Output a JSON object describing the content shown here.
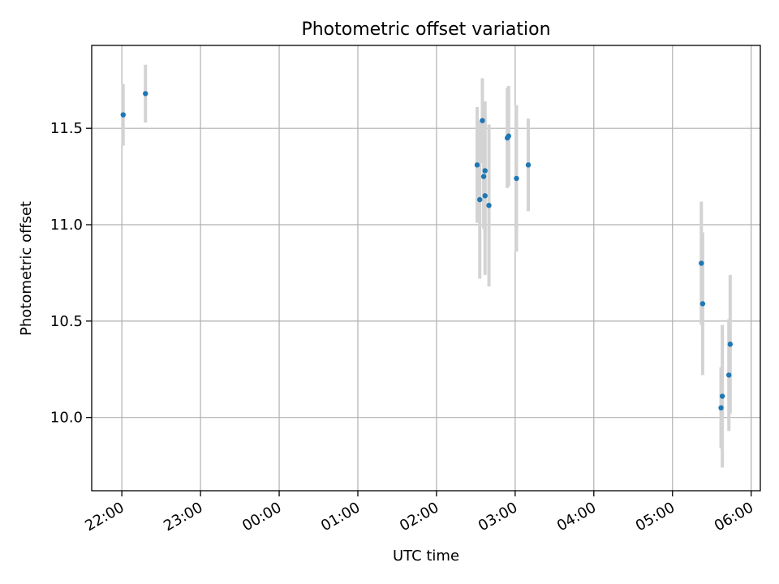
{
  "chart_data": {
    "type": "scatter",
    "title": "Photometric offset variation",
    "xlabel": "UTC time",
    "ylabel": "Photometric offset",
    "grid": true,
    "x_axis": {
      "kind": "time",
      "range": [
        "21:37",
        "06:07"
      ],
      "ticks": [
        "22:00",
        "23:00",
        "00:00",
        "01:00",
        "02:00",
        "03:00",
        "04:00",
        "05:00",
        "06:00"
      ]
    },
    "y_axis": {
      "range": [
        9.62,
        11.93
      ],
      "ticks": [
        "10.0",
        "10.5",
        "11.0",
        "11.5"
      ]
    },
    "colors": {
      "point": "#1f77b4",
      "errorbar": "#d3d3d3",
      "grid": "#b0b0b0"
    },
    "points": [
      {
        "x": "22:01",
        "y": 11.57,
        "err": 0.16
      },
      {
        "x": "22:18",
        "y": 11.68,
        "err": 0.15
      },
      {
        "x": "02:31",
        "y": 11.31,
        "err": 0.3
      },
      {
        "x": "02:33",
        "y": 11.13,
        "err": 0.41
      },
      {
        "x": "02:35",
        "y": 11.54,
        "err": 0.22
      },
      {
        "x": "02:36",
        "y": 11.25,
        "err": 0.27
      },
      {
        "x": "02:37",
        "y": 11.15,
        "err": 0.41
      },
      {
        "x": "02:37",
        "y": 11.28,
        "err": 0.36
      },
      {
        "x": "02:40",
        "y": 11.1,
        "err": 0.42
      },
      {
        "x": "02:54",
        "y": 11.45,
        "err": 0.26
      },
      {
        "x": "02:55",
        "y": 11.46,
        "err": 0.26
      },
      {
        "x": "03:01",
        "y": 11.24,
        "err": 0.38
      },
      {
        "x": "03:10",
        "y": 11.31,
        "err": 0.24
      },
      {
        "x": "05:22",
        "y": 10.8,
        "err": 0.32
      },
      {
        "x": "05:23",
        "y": 10.59,
        "err": 0.37
      },
      {
        "x": "05:37",
        "y": 10.05,
        "err": 0.21
      },
      {
        "x": "05:38",
        "y": 10.11,
        "err": 0.37
      },
      {
        "x": "05:43",
        "y": 10.22,
        "err": 0.29
      },
      {
        "x": "05:44",
        "y": 10.38,
        "err": 0.36
      }
    ]
  }
}
